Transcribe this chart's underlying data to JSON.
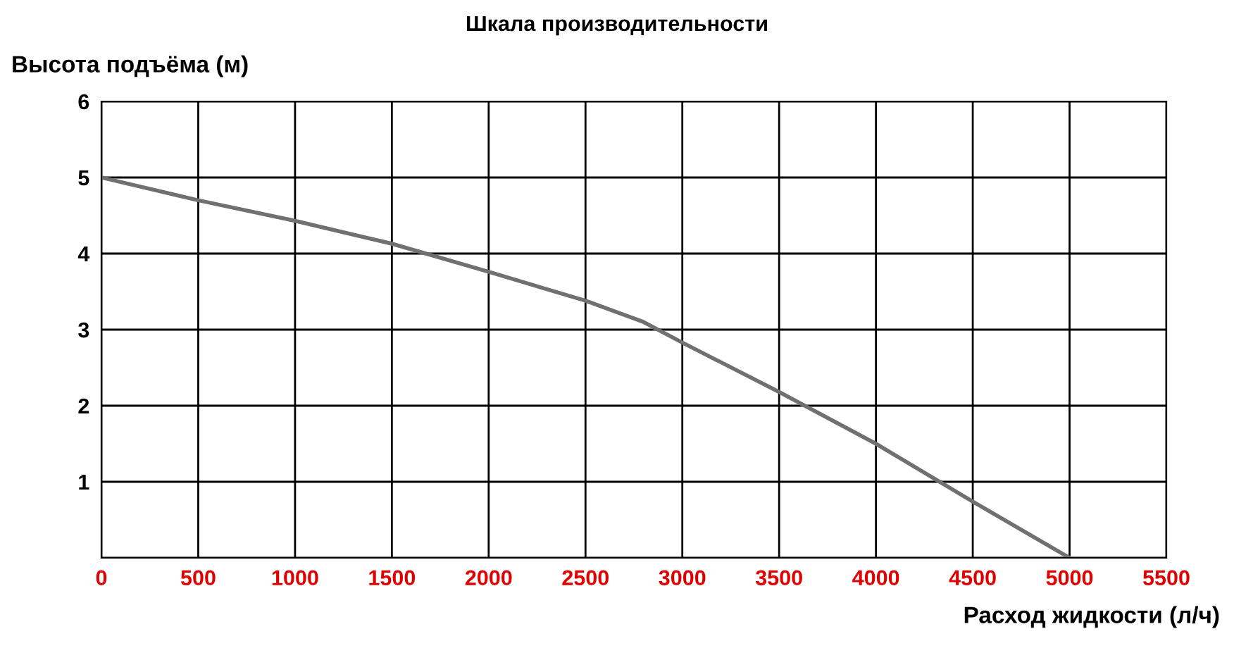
{
  "chart_data": {
    "type": "line",
    "title": "Шкала производительности",
    "xlabel": "Расход жидкости (л/ч)",
    "ylabel": "Высота подъёма (м)",
    "x": [
      0,
      500,
      1000,
      1500,
      2000,
      2500,
      2800,
      3000,
      3500,
      4000,
      4500,
      5000
    ],
    "series": [
      {
        "color": "#707070",
        "values": [
          5.0,
          4.7,
          4.43,
          4.13,
          3.76,
          3.38,
          3.1,
          2.83,
          2.18,
          1.5,
          0.74,
          0.0
        ]
      }
    ],
    "xlim": [
      0,
      5500
    ],
    "xticks": [
      0,
      500,
      1000,
      1500,
      2000,
      2500,
      3000,
      3500,
      4000,
      4500,
      5000,
      5500
    ],
    "ylim": [
      0,
      6
    ],
    "yticks": [
      {
        "value": 0,
        "label": null
      },
      1,
      2,
      3,
      4,
      5,
      6
    ],
    "grid": true,
    "legend": false,
    "marker": "none",
    "line_style": "solid"
  }
}
